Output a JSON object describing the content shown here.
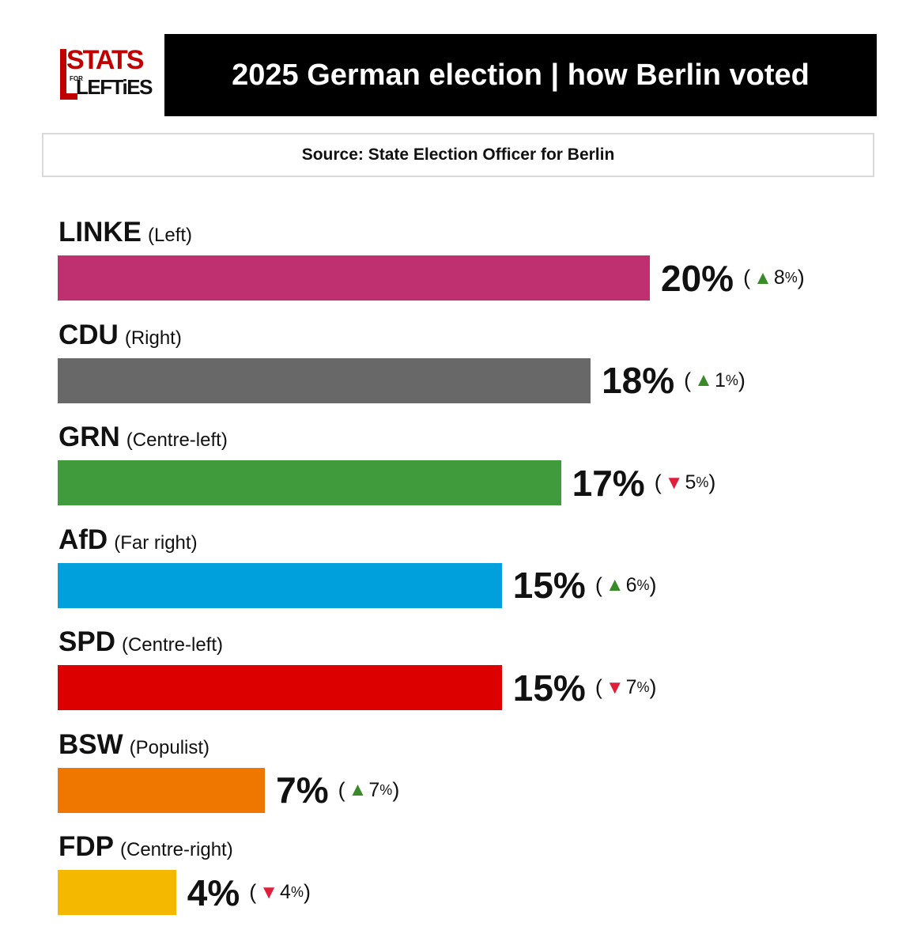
{
  "logo": {
    "line1": "STATS",
    "line2": "FOR",
    "line3": "LEFTiES"
  },
  "header": {
    "title": "2025 German election | how Berlin voted"
  },
  "source": {
    "text": "Source: State Election Officer for Berlin"
  },
  "colors": {
    "up": "#3a8a2a",
    "down": "#e0203a"
  },
  "chart_data": {
    "type": "bar",
    "orientation": "horizontal",
    "categories": [
      "LINKE",
      "CDU",
      "GRN",
      "AfD",
      "SPD",
      "BSW",
      "FDP"
    ],
    "descriptions": [
      "(Left)",
      "(Right)",
      "(Centre-left)",
      "(Far right)",
      "(Centre-left)",
      "(Populist)",
      "(Centre-right)"
    ],
    "values": [
      20,
      18,
      17,
      15,
      15,
      7,
      4
    ],
    "value_labels": [
      "20%",
      "18%",
      "17%",
      "15%",
      "15%",
      "7%",
      "4%"
    ],
    "changes": [
      8,
      1,
      -5,
      6,
      -7,
      7,
      -4
    ],
    "colors": [
      "#bf3070",
      "#686868",
      "#409b3d",
      "#00a0dc",
      "#dd0000",
      "#ef7700",
      "#f5b800"
    ],
    "unit": "%",
    "legend": "none",
    "grid": false
  }
}
